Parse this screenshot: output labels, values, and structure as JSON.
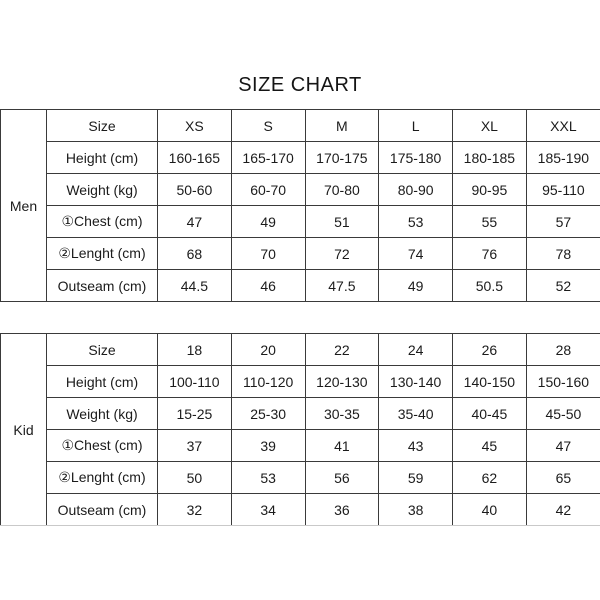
{
  "title": "SIZE CHART",
  "colors": {
    "background": "#ffffff",
    "border": "#3a3a3a",
    "text": "#1b1b1b"
  },
  "chart_data": [
    {
      "type": "table",
      "group_label": "Men",
      "columns": [
        "Size",
        "XS",
        "S",
        "M",
        "L",
        "XL",
        "XXL"
      ],
      "rows": [
        {
          "label": "Height (cm)",
          "values": [
            "160-165",
            "165-170",
            "170-175",
            "175-180",
            "180-185",
            "185-190"
          ]
        },
        {
          "label": "Weight (kg)",
          "values": [
            "50-60",
            "60-70",
            "70-80",
            "80-90",
            "90-95",
            "95-110"
          ]
        },
        {
          "label": "①Chest (cm)",
          "values": [
            "47",
            "49",
            "51",
            "53",
            "55",
            "57"
          ]
        },
        {
          "label": "②Lenght (cm)",
          "values": [
            "68",
            "70",
            "72",
            "74",
            "76",
            "78"
          ]
        },
        {
          "label": "Outseam (cm)",
          "values": [
            "44.5",
            "46",
            "47.5",
            "49",
            "50.5",
            "52"
          ]
        }
      ]
    },
    {
      "type": "table",
      "group_label": "Kid",
      "columns": [
        "Size",
        "18",
        "20",
        "22",
        "24",
        "26",
        "28"
      ],
      "rows": [
        {
          "label": "Height (cm)",
          "values": [
            "100-110",
            "110-120",
            "120-130",
            "130-140",
            "140-150",
            "150-160"
          ]
        },
        {
          "label": "Weight (kg)",
          "values": [
            "15-25",
            "25-30",
            "30-35",
            "35-40",
            "40-45",
            "45-50"
          ]
        },
        {
          "label": "①Chest (cm)",
          "values": [
            "37",
            "39",
            "41",
            "43",
            "45",
            "47"
          ]
        },
        {
          "label": "②Lenght (cm)",
          "values": [
            "50",
            "53",
            "56",
            "59",
            "62",
            "65"
          ]
        },
        {
          "label": "Outseam (cm)",
          "values": [
            "32",
            "34",
            "36",
            "38",
            "40",
            "42"
          ]
        }
      ]
    }
  ]
}
